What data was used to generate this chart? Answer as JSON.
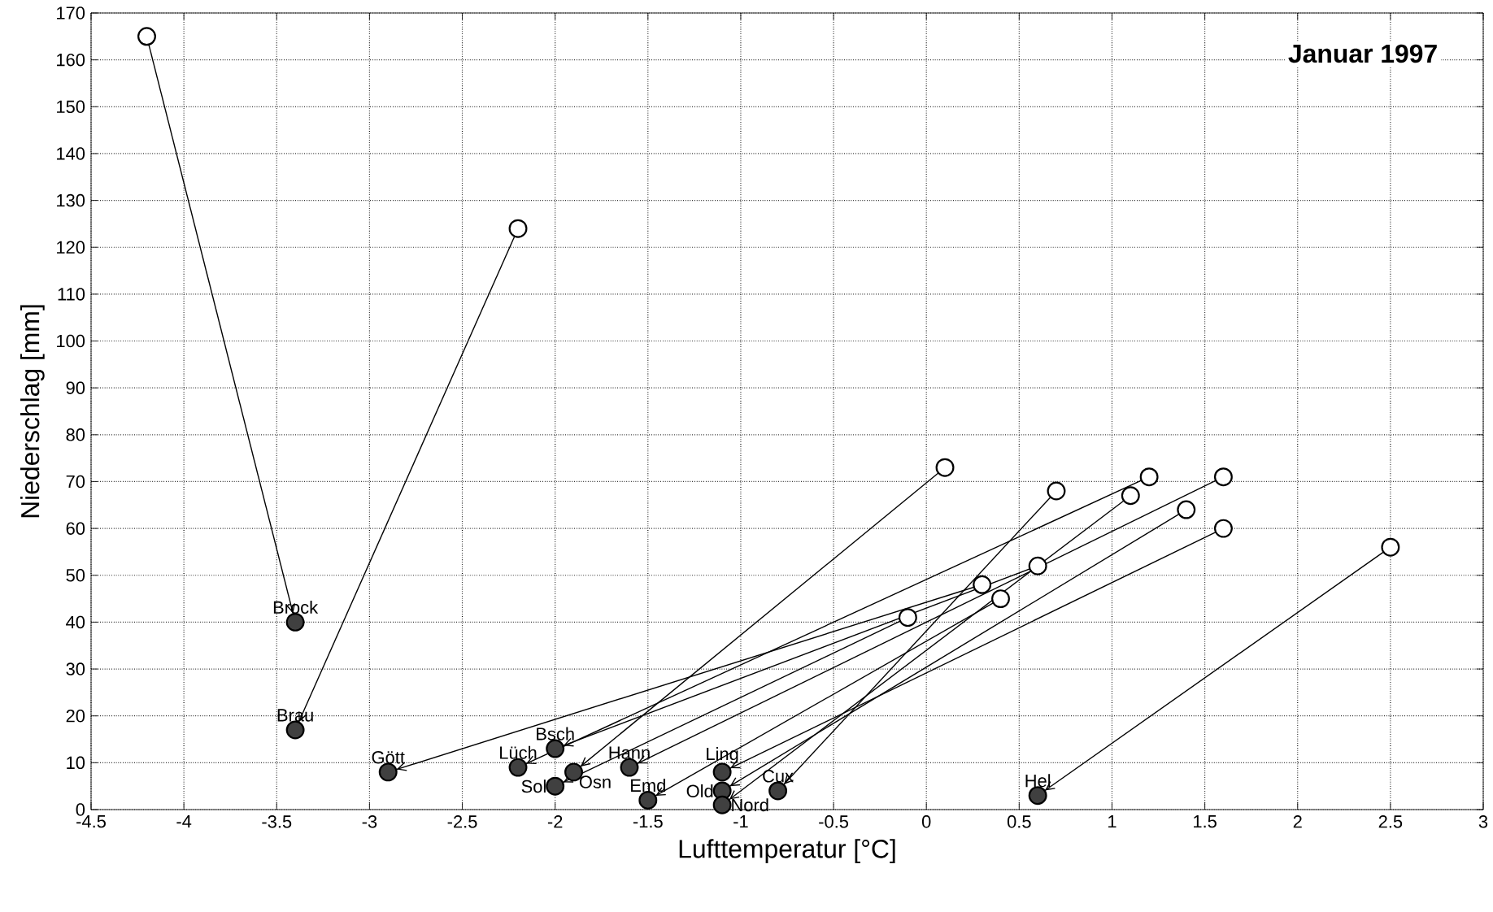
{
  "chart_data": {
    "type": "scatter",
    "title": "Januar 1997",
    "xlabel": "Lufttemperatur [°C]",
    "ylabel": "Niederschlag [mm]",
    "xlim": [
      -4.5,
      3
    ],
    "xticks": [
      -4.5,
      -4,
      -3.5,
      -3,
      -2.5,
      -2,
      -1.5,
      -1,
      -0.5,
      0,
      0.5,
      1,
      1.5,
      2,
      2.5,
      3
    ],
    "ylim": [
      0,
      170
    ],
    "yticks": [
      0,
      10,
      20,
      30,
      40,
      50,
      60,
      70,
      80,
      90,
      100,
      110,
      120,
      130,
      140,
      150,
      160,
      170
    ],
    "grid": true,
    "series": [
      {
        "type": "line",
        "color": "#000000",
        "marker": "none",
        "x": [
          -4.2,
          -3.4
        ],
        "values": [
          165,
          40
        ]
      },
      {
        "type": "line",
        "color": "#000000",
        "marker": "none",
        "x": [
          -2.2,
          -3.4
        ],
        "values": [
          124,
          17
        ]
      },
      {
        "type": "line",
        "color": "#000000",
        "marker": "none",
        "x": [
          0.3,
          -2.9
        ],
        "values": [
          48,
          8
        ]
      },
      {
        "type": "line",
        "color": "#000000",
        "marker": "none",
        "x": [
          1.2,
          -2.2
        ],
        "values": [
          71,
          9
        ]
      },
      {
        "type": "line",
        "color": "#000000",
        "marker": "none",
        "x": [
          0.6,
          -2.0
        ],
        "values": [
          52,
          13
        ]
      },
      {
        "type": "line",
        "color": "#000000",
        "marker": "none",
        "x": [
          -0.1,
          -2.0
        ],
        "values": [
          41,
          5
        ]
      },
      {
        "type": "line",
        "color": "#000000",
        "marker": "none",
        "x": [
          0.1,
          -1.9
        ],
        "values": [
          73,
          8
        ]
      },
      {
        "type": "line",
        "color": "#000000",
        "marker": "none",
        "x": [
          1.6,
          -1.6
        ],
        "values": [
          71,
          9
        ]
      },
      {
        "type": "line",
        "color": "#000000",
        "marker": "none",
        "x": [
          0.4,
          -1.5
        ],
        "values": [
          45,
          2
        ]
      },
      {
        "type": "line",
        "color": "#000000",
        "marker": "none",
        "x": [
          1.4,
          -1.1
        ],
        "values": [
          64,
          4
        ]
      },
      {
        "type": "line",
        "color": "#000000",
        "marker": "none",
        "x": [
          1.6,
          -1.1
        ],
        "values": [
          60,
          8
        ]
      },
      {
        "type": "line",
        "color": "#000000",
        "marker": "none",
        "x": [
          1.1,
          -1.1
        ],
        "values": [
          67,
          1
        ]
      },
      {
        "type": "line",
        "color": "#000000",
        "marker": "none",
        "x": [
          0.7,
          -0.8
        ],
        "values": [
          68,
          4
        ]
      },
      {
        "type": "line",
        "color": "#000000",
        "marker": "none",
        "x": [
          2.5,
          0.6
        ],
        "values": [
          56,
          3
        ]
      },
      {
        "color": "#ffffff",
        "marker": "circle",
        "x": [
          -4.2,
          -2.2,
          0.3,
          1.2,
          0.6,
          -0.1,
          0.1,
          1.6,
          0.4,
          1.4,
          1.6,
          1.1,
          0.7,
          2.5
        ],
        "values": [
          165,
          124,
          48,
          71,
          52,
          41,
          73,
          71,
          45,
          64,
          60,
          67,
          68,
          56
        ]
      },
      {
        "color": "#404040",
        "marker": "circle",
        "x": [
          -3.4,
          -3.4,
          -2.9,
          -2.2,
          -2.0,
          -2.0,
          -1.9,
          -1.6,
          -1.5,
          -1.1,
          -1.1,
          -1.1,
          -0.8,
          0.6
        ],
        "values": [
          40,
          17,
          8,
          9,
          13,
          5,
          8,
          9,
          2,
          4,
          8,
          1,
          4,
          3
        ]
      }
    ],
    "annotations": [
      {
        "text": "Brock",
        "x": -3.4,
        "y": 40
      },
      {
        "text": "Brau",
        "x": -3.4,
        "y": 17
      },
      {
        "text": "Gött",
        "x": -2.9,
        "y": 8
      },
      {
        "text": "Lüch",
        "x": -2.2,
        "y": 9
      },
      {
        "text": "Bsch",
        "x": -2.0,
        "y": 13
      },
      {
        "text": "Sol",
        "x": -2.0,
        "y": 5
      },
      {
        "text": "Osn",
        "x": -1.9,
        "y": 8
      },
      {
        "text": "Hann",
        "x": -1.6,
        "y": 9
      },
      {
        "text": "Emd",
        "x": -1.5,
        "y": 2
      },
      {
        "text": "Old",
        "x": -1.1,
        "y": 4
      },
      {
        "text": "Ling",
        "x": -1.1,
        "y": 8
      },
      {
        "text": "Nord",
        "x": -1.1,
        "y": 1
      },
      {
        "text": "Cux",
        "x": -0.8,
        "y": 4
      },
      {
        "text": "Hel",
        "x": 0.6,
        "y": 3
      }
    ]
  }
}
